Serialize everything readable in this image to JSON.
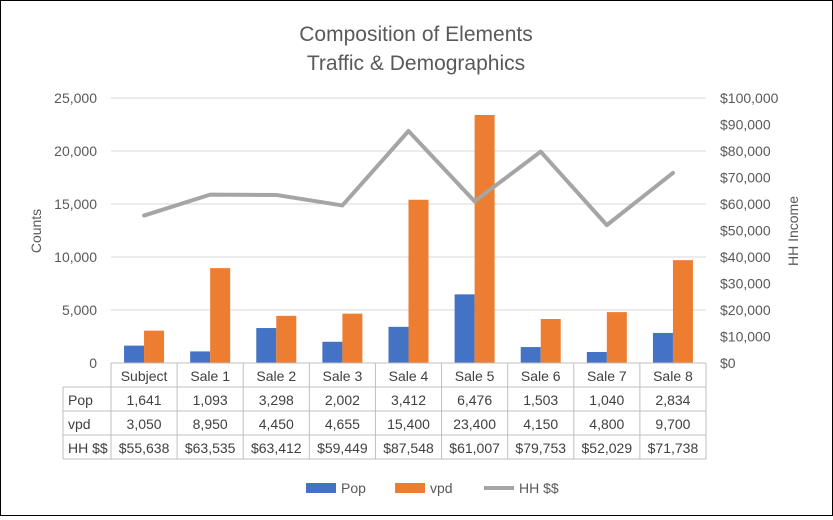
{
  "chart_data": {
    "type": "bar",
    "title": [
      "Composition of Elements",
      "Traffic & Demographics"
    ],
    "categories": [
      "Subject",
      "Sale 1",
      "Sale 2",
      "Sale 3",
      "Sale 4",
      "Sale 5",
      "Sale 6",
      "Sale 7",
      "Sale 8"
    ],
    "y_left": {
      "label": "Counts",
      "range": [
        0,
        25000
      ],
      "ticks": [
        0,
        5000,
        10000,
        15000,
        20000,
        25000
      ],
      "tick_labels": [
        "0",
        "5,000",
        "10,000",
        "15,000",
        "20,000",
        "25,000"
      ]
    },
    "y_right": {
      "label": "HH Income",
      "range": [
        0,
        100000
      ],
      "ticks": [
        0,
        10000,
        20000,
        30000,
        40000,
        50000,
        60000,
        70000,
        80000,
        90000,
        100000
      ],
      "tick_labels": [
        "$0",
        "$10,000",
        "$20,000",
        "$30,000",
        "$40,000",
        "$50,000",
        "$60,000",
        "$70,000",
        "$80,000",
        "$90,000",
        "$100,000"
      ]
    },
    "gridlines": true,
    "legend_position": "bottom",
    "series": [
      {
        "name": "Pop",
        "type": "bar",
        "axis": "left",
        "color": "#4472C4",
        "values": [
          1641,
          1093,
          3298,
          2002,
          3412,
          6476,
          1503,
          1040,
          2834
        ],
        "labels": [
          "1,641",
          "1,093",
          "3,298",
          "2,002",
          "3,412",
          "6,476",
          "1,503",
          "1,040",
          "2,834"
        ]
      },
      {
        "name": "vpd",
        "type": "bar",
        "axis": "left",
        "color": "#ED7D31",
        "values": [
          3050,
          8950,
          4450,
          4655,
          15400,
          23400,
          4150,
          4800,
          9700
        ],
        "labels": [
          "3,050",
          "8,950",
          "4,450",
          "4,655",
          "15,400",
          "23,400",
          "4,150",
          "4,800",
          "9,700"
        ]
      },
      {
        "name": "HH $$",
        "type": "line",
        "axis": "right",
        "color": "#A5A5A5",
        "values": [
          55638,
          63535,
          63412,
          59449,
          87548,
          61007,
          79753,
          52029,
          71738
        ],
        "labels": [
          "$55,638",
          "$63,535",
          "$63,412",
          "$59,449",
          "$87,548",
          "$61,007",
          "$79,753",
          "$52,029",
          "$71,738"
        ]
      }
    ]
  }
}
